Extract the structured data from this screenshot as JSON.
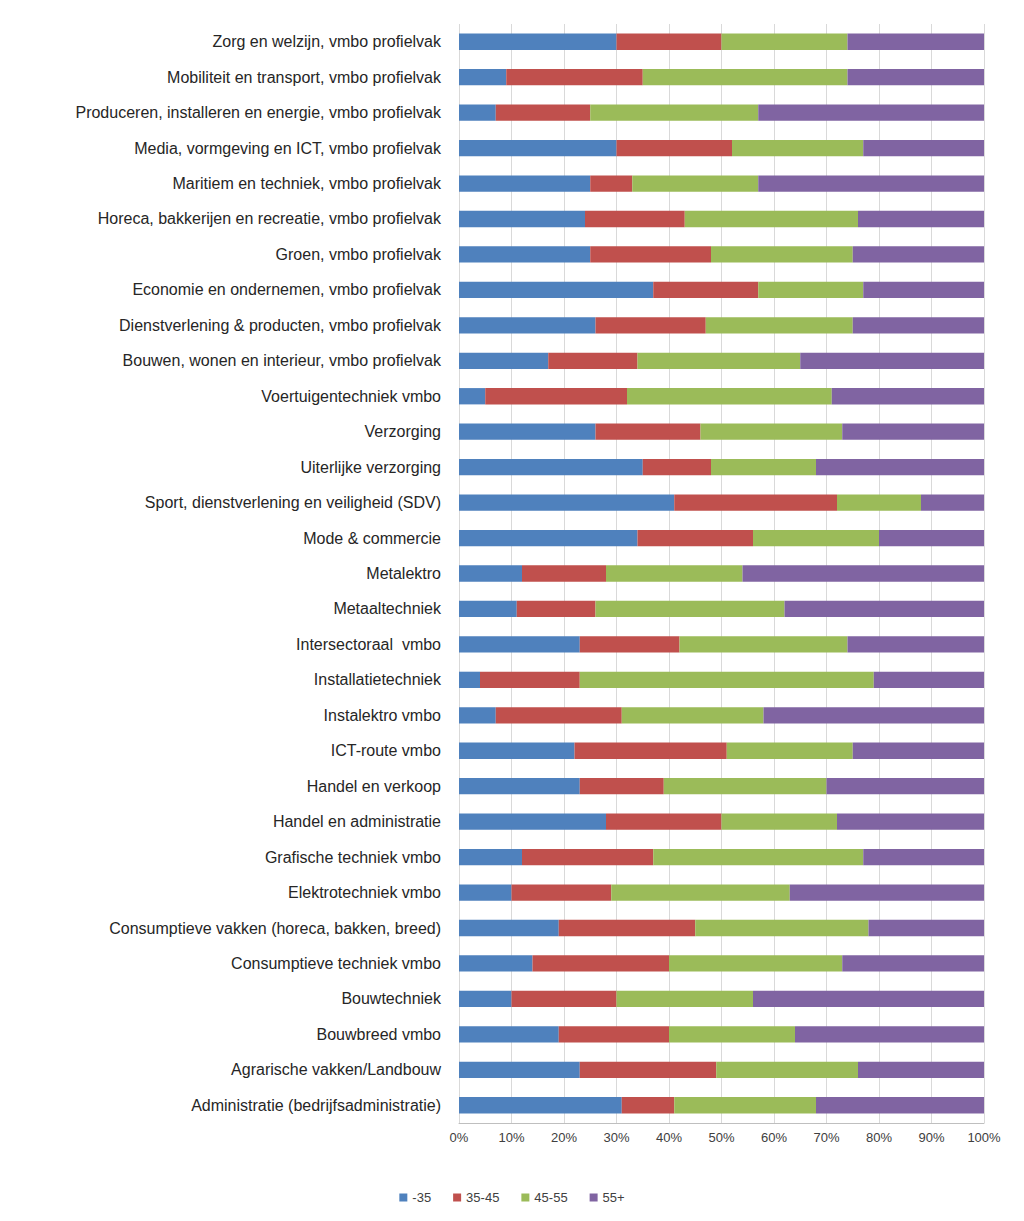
{
  "chart_data": {
    "type": "bar",
    "orientation": "horizontal",
    "stacked": true,
    "grid": true,
    "legend": "bottom",
    "categories": [
      "Zorg en welzijn, vmbo profielvak",
      "Mobiliteit en transport, vmbo profielvak",
      "Produceren, installeren en energie, vmbo profielvak",
      "Media, vormgeving en ICT, vmbo profielvak",
      "Maritiem en techniek, vmbo profielvak",
      "Horeca, bakkerijen en recreatie, vmbo profielvak",
      "Groen, vmbo profielvak",
      "Economie en ondernemen, vmbo profielvak",
      "Dienstverlening & producten, vmbo profielvak",
      "Bouwen, wonen en interieur, vmbo profielvak",
      "Voertuigentechniek vmbo",
      "Verzorging",
      "Uiterlijke verzorging",
      "Sport, dienstverlening en veiligheid (SDV)",
      "Mode & commercie",
      "Metalektro",
      "Metaaltechniek",
      "Intersectoraal  vmbo",
      "Installatietechniek",
      "Instalektro vmbo",
      "ICT-route vmbo",
      "Handel en verkoop",
      "Handel en administratie",
      "Grafische techniek vmbo",
      "Elektrotechniek vmbo",
      "Consumptieve vakken (horeca, bakken, breed)",
      "Consumptieve techniek vmbo",
      "Bouwtechniek",
      "Bouwbreed vmbo",
      "Agrarische vakken/Landbouw",
      "Administratie (bedrijfsadministratie)"
    ],
    "series": [
      {
        "name": "-35",
        "color": "#4f81bd",
        "values": [
          30,
          9,
          7,
          30,
          25,
          24,
          25,
          37,
          26,
          17,
          5,
          26,
          35,
          41,
          34,
          12,
          11,
          23,
          4,
          7,
          22,
          23,
          28,
          12,
          10,
          19,
          14,
          10,
          19,
          23,
          31
        ]
      },
      {
        "name": "35-45",
        "color": "#c0504d",
        "values": [
          20,
          26,
          18,
          22,
          8,
          19,
          23,
          20,
          21,
          17,
          27,
          20,
          13,
          31,
          22,
          16,
          15,
          19,
          19,
          24,
          29,
          16,
          22,
          25,
          19,
          26,
          26,
          20,
          21,
          26,
          10
        ]
      },
      {
        "name": "45-55",
        "color": "#9bbb59",
        "values": [
          24,
          39,
          32,
          25,
          24,
          33,
          27,
          20,
          28,
          31,
          39,
          27,
          20,
          16,
          24,
          26,
          36,
          32,
          56,
          27,
          24,
          31,
          22,
          40,
          34,
          33,
          33,
          26,
          24,
          27,
          27
        ]
      },
      {
        "name": "55+",
        "color": "#8064a2",
        "values": [
          26,
          26,
          43,
          23,
          43,
          24,
          25,
          23,
          25,
          35,
          29,
          27,
          32,
          12,
          20,
          46,
          38,
          26,
          21,
          42,
          25,
          30,
          28,
          23,
          37,
          22,
          27,
          44,
          36,
          24,
          32
        ]
      }
    ],
    "xlim": [
      0,
      100
    ],
    "xticks": [
      {
        "value": 0,
        "label": "0%"
      },
      {
        "value": 10,
        "label": "10%"
      },
      {
        "value": 20,
        "label": "20%"
      },
      {
        "value": 30,
        "label": "30%"
      },
      {
        "value": 40,
        "label": "40%"
      },
      {
        "value": 50,
        "label": "50%"
      },
      {
        "value": 60,
        "label": "60%"
      },
      {
        "value": 70,
        "label": "70%"
      },
      {
        "value": 80,
        "label": "80%"
      },
      {
        "value": 90,
        "label": "90%"
      },
      {
        "value": 100,
        "label": "100%"
      }
    ]
  }
}
